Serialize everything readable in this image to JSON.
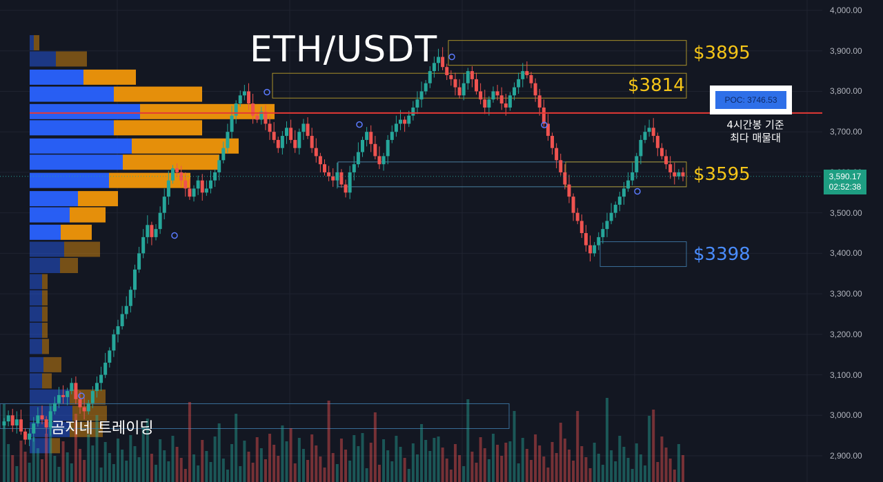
{
  "header": {
    "title": "ETH/USDT"
  },
  "watermark": "곰지네 트레이딩",
  "levels": [
    {
      "label": "$3895",
      "price": 3895,
      "color": "#f5c518"
    },
    {
      "label": "$3814",
      "price": 3814,
      "color": "#f5c518"
    },
    {
      "label": "$3595",
      "price": 3595,
      "color": "#f5c518"
    },
    {
      "label": "$3398",
      "price": 3398,
      "color": "#4a8dff"
    }
  ],
  "poc": {
    "label": "POC: 3746.53",
    "value": 3746.53,
    "note_line1": "4시간봉 기준",
    "note_line2": "최다 매물대"
  },
  "last_price": {
    "price_label": "3,590.17",
    "countdown": "02:52:38",
    "value": 3590.17
  },
  "colors": {
    "up": "#26a69a",
    "down": "#ef5350",
    "poc_line": "#e53935",
    "vp_blue": "#2962ff",
    "vp_orange": "#f0960a",
    "background": "#131722"
  },
  "chart_data": {
    "type": "candlestick",
    "title": "ETH/USDT",
    "yaxis": {
      "ticks": [
        "4,000.00",
        "3,900.00",
        "3,800.00",
        "3,700.00",
        "3,600.00",
        "3,500.00",
        "3,400.00",
        "3,300.00",
        "3,200.00",
        "3,100.00",
        "3,000.00",
        "2,900.00"
      ],
      "tick_values": [
        4000,
        3900,
        3800,
        3700,
        3600,
        3500,
        3400,
        3300,
        3200,
        3100,
        3000,
        2900
      ],
      "range": [
        2850,
        4020
      ]
    },
    "grid": true,
    "closes": [
      2985,
      3000,
      2975,
      2990,
      2960,
      2940,
      2955,
      2980,
      3000,
      2990,
      2970,
      3010,
      3030,
      3050,
      3045,
      3060,
      3080,
      3040,
      3020,
      3010,
      3030,
      3060,
      3080,
      3100,
      3130,
      3160,
      3200,
      3220,
      3250,
      3270,
      3310,
      3360,
      3400,
      3440,
      3470,
      3440,
      3460,
      3500,
      3540,
      3580,
      3610,
      3600,
      3580,
      3560,
      3540,
      3560,
      3580,
      3550,
      3560,
      3580,
      3600,
      3630,
      3660,
      3700,
      3740,
      3770,
      3790,
      3800,
      3770,
      3740,
      3730,
      3750,
      3720,
      3700,
      3680,
      3660,
      3690,
      3710,
      3680,
      3660,
      3700,
      3720,
      3690,
      3660,
      3640,
      3620,
      3600,
      3590,
      3580,
      3600,
      3570,
      3550,
      3600,
      3620,
      3650,
      3680,
      3700,
      3670,
      3640,
      3620,
      3640,
      3680,
      3700,
      3720,
      3730,
      3720,
      3740,
      3760,
      3780,
      3800,
      3820,
      3850,
      3870,
      3885,
      3860,
      3840,
      3830,
      3810,
      3790,
      3820,
      3850,
      3830,
      3800,
      3780,
      3760,
      3780,
      3800,
      3790,
      3770,
      3760,
      3790,
      3810,
      3830,
      3850,
      3840,
      3820,
      3790,
      3760,
      3720,
      3690,
      3660,
      3630,
      3600,
      3570,
      3540,
      3500,
      3480,
      3450,
      3420,
      3400,
      3420,
      3440,
      3460,
      3480,
      3500,
      3520,
      3540,
      3560,
      3580,
      3600,
      3640,
      3680,
      3700,
      3710,
      3690,
      3660,
      3640,
      3620,
      3600,
      3590,
      3600,
      3590
    ]
  }
}
